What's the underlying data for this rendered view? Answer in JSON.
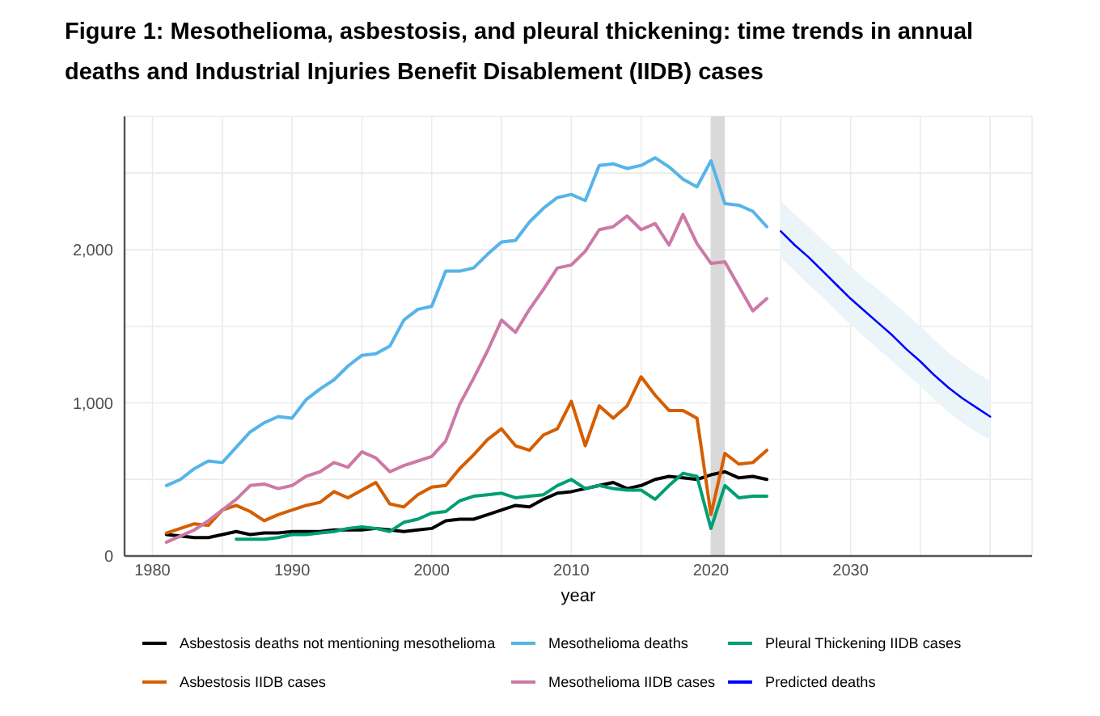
{
  "chart_data": {
    "type": "line",
    "title": "Figure 1: Mesothelioma, asbestosis, and pleural thickening: time trends in annual deaths and Industrial Injuries Benefit Disablement (IIDB) cases",
    "xlabel": "year",
    "x": [
      1981,
      1982,
      1983,
      1984,
      1985,
      1986,
      1987,
      1988,
      1989,
      1990,
      1991,
      1992,
      1993,
      1994,
      1995,
      1996,
      1997,
      1998,
      1999,
      2000,
      2001,
      2002,
      2003,
      2004,
      2005,
      2006,
      2007,
      2008,
      2009,
      2010,
      2011,
      2012,
      2013,
      2014,
      2015,
      2016,
      2017,
      2018,
      2019,
      2020,
      2021,
      2022,
      2023,
      2024
    ],
    "xlim": [
      1978,
      2043
    ],
    "xticks": [
      1980,
      {
        "value": 1985,
        "label": null
      },
      1990,
      {
        "value": 1995,
        "label": null
      },
      2000,
      {
        "value": 2005,
        "label": null
      },
      2010,
      {
        "value": 2015,
        "label": null
      },
      2020,
      {
        "value": 2025,
        "label": null
      },
      2030,
      {
        "value": 2035,
        "label": null
      },
      {
        "value": 2040,
        "label": null
      }
    ],
    "ylim": [
      0,
      2870
    ],
    "yticks": [
      0,
      {
        "value": 500,
        "label": null
      },
      {
        "value": 1000,
        "label": "1,000"
      },
      {
        "value": 1500,
        "label": null
      },
      {
        "value": 2000,
        "label": "2,000"
      },
      {
        "value": 2500,
        "label": null
      }
    ],
    "grid": true,
    "legend": "bottom",
    "marker": "none",
    "bands": [
      {
        "axis": "x",
        "from": 2020,
        "to": 2021,
        "color": "#d9d9d9"
      }
    ],
    "series": [
      {
        "name": "Asbestosis deaths not mentioning mesothelioma",
        "color": "#000000",
        "values": [
          140,
          130,
          120,
          120,
          140,
          160,
          140,
          150,
          150,
          160,
          160,
          160,
          170,
          170,
          170,
          180,
          170,
          160,
          170,
          180,
          230,
          240,
          240,
          270,
          300,
          330,
          320,
          370,
          410,
          420,
          440,
          460,
          480,
          440,
          460,
          500,
          520,
          510,
          500,
          530,
          550,
          510,
          520,
          500
        ]
      },
      {
        "name": "Asbestosis IIDB cases",
        "color": "#d55e00",
        "values": [
          150,
          180,
          210,
          200,
          300,
          330,
          290,
          230,
          270,
          300,
          330,
          350,
          420,
          380,
          430,
          480,
          340,
          320,
          400,
          450,
          460,
          570,
          660,
          760,
          830,
          720,
          690,
          790,
          830,
          1010,
          720,
          980,
          900,
          980,
          1170,
          1050,
          950,
          950,
          900,
          270,
          670,
          600,
          610,
          690
        ]
      },
      {
        "name": "Mesothelioma deaths",
        "color": "#56b4e9",
        "values": [
          460,
          500,
          570,
          620,
          610,
          710,
          810,
          870,
          910,
          900,
          1020,
          1090,
          1150,
          1240,
          1310,
          1320,
          1370,
          1540,
          1610,
          1630,
          1860,
          1860,
          1880,
          1970,
          2050,
          2060,
          2180,
          2270,
          2340,
          2360,
          2320,
          2550,
          2560,
          2530,
          2550,
          2600,
          2540,
          2460,
          2410,
          2580,
          2300,
          2290,
          2250,
          2150
        ]
      },
      {
        "name": "Mesothelioma IIDB cases",
        "color": "#cc79a7",
        "values": [
          90,
          130,
          170,
          230,
          300,
          370,
          460,
          470,
          440,
          460,
          520,
          550,
          610,
          580,
          680,
          640,
          550,
          590,
          620,
          650,
          750,
          990,
          1160,
          1340,
          1540,
          1460,
          1610,
          1740,
          1880,
          1900,
          1990,
          2130,
          2150,
          2220,
          2130,
          2170,
          2030,
          2230,
          2040,
          1910,
          1920,
          1760,
          1600,
          1680
        ]
      },
      {
        "name": "Pleural Thickening IIDB cases",
        "color": "#009e73",
        "values": [
          null,
          null,
          null,
          null,
          null,
          110,
          110,
          110,
          120,
          140,
          140,
          150,
          160,
          180,
          190,
          180,
          160,
          220,
          240,
          280,
          290,
          360,
          390,
          400,
          410,
          380,
          390,
          400,
          460,
          500,
          440,
          460,
          440,
          430,
          430,
          370,
          460,
          540,
          520,
          180,
          460,
          380,
          390,
          390
        ]
      },
      {
        "name": "Predicted deaths",
        "color": "#0000ff",
        "x": [
          2025,
          2026,
          2027,
          2028,
          2029,
          2030,
          2031,
          2032,
          2033,
          2034,
          2035,
          2036,
          2037,
          2038,
          2039,
          2040
        ],
        "values": [
          2120,
          2030,
          1950,
          1860,
          1770,
          1680,
          1600,
          1520,
          1440,
          1350,
          1270,
          1180,
          1100,
          1030,
          970,
          910
        ],
        "lower": [
          1950,
          1860,
          1770,
          1690,
          1600,
          1510,
          1430,
          1350,
          1270,
          1190,
          1110,
          1020,
          940,
          870,
          810,
          760
        ],
        "upper": [
          2320,
          2230,
          2150,
          2060,
          1980,
          1890,
          1810,
          1740,
          1660,
          1580,
          1500,
          1410,
          1330,
          1260,
          1200,
          1140
        ]
      }
    ]
  }
}
